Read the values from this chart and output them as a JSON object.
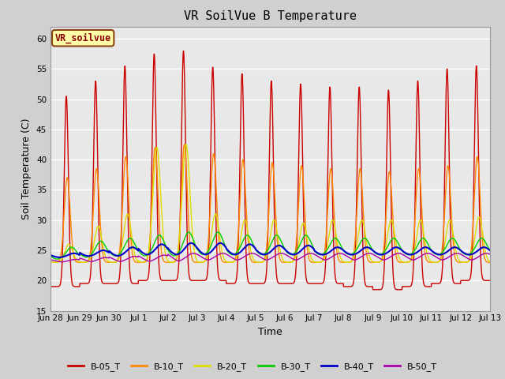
{
  "title": "VR SoilVue B Temperature",
  "xlabel": "Time",
  "ylabel": "Soil Temperature (C)",
  "ylim": [
    15,
    62
  ],
  "yticks": [
    15,
    20,
    25,
    30,
    35,
    40,
    45,
    50,
    55,
    60
  ],
  "plot_bg_color": "#e8e8e8",
  "fig_bg_color": "#d0d0d0",
  "watermark": "VR_soilvue",
  "series_colors": {
    "B-05_T": "#cc0000",
    "B-10_T": "#ff8800",
    "B-20_T": "#dddd00",
    "B-30_T": "#00cc00",
    "B-40_T": "#0000cc",
    "B-50_T": "#aa00aa"
  },
  "x_tick_labels": [
    "Jun 28",
    "Jun 29",
    "Jun 30",
    "Jul 1",
    "Jul 2",
    "Jul 3",
    "Jul 4",
    "Jul 5",
    "Jul 6",
    "Jul 7",
    "Jul 8",
    "Jul 9",
    "Jul 10",
    "Jul 11",
    "Jul 12",
    "Jul 13"
  ],
  "n_days": 15,
  "title_fontsize": 11,
  "axis_label_fontsize": 9,
  "tick_fontsize": 7.5
}
